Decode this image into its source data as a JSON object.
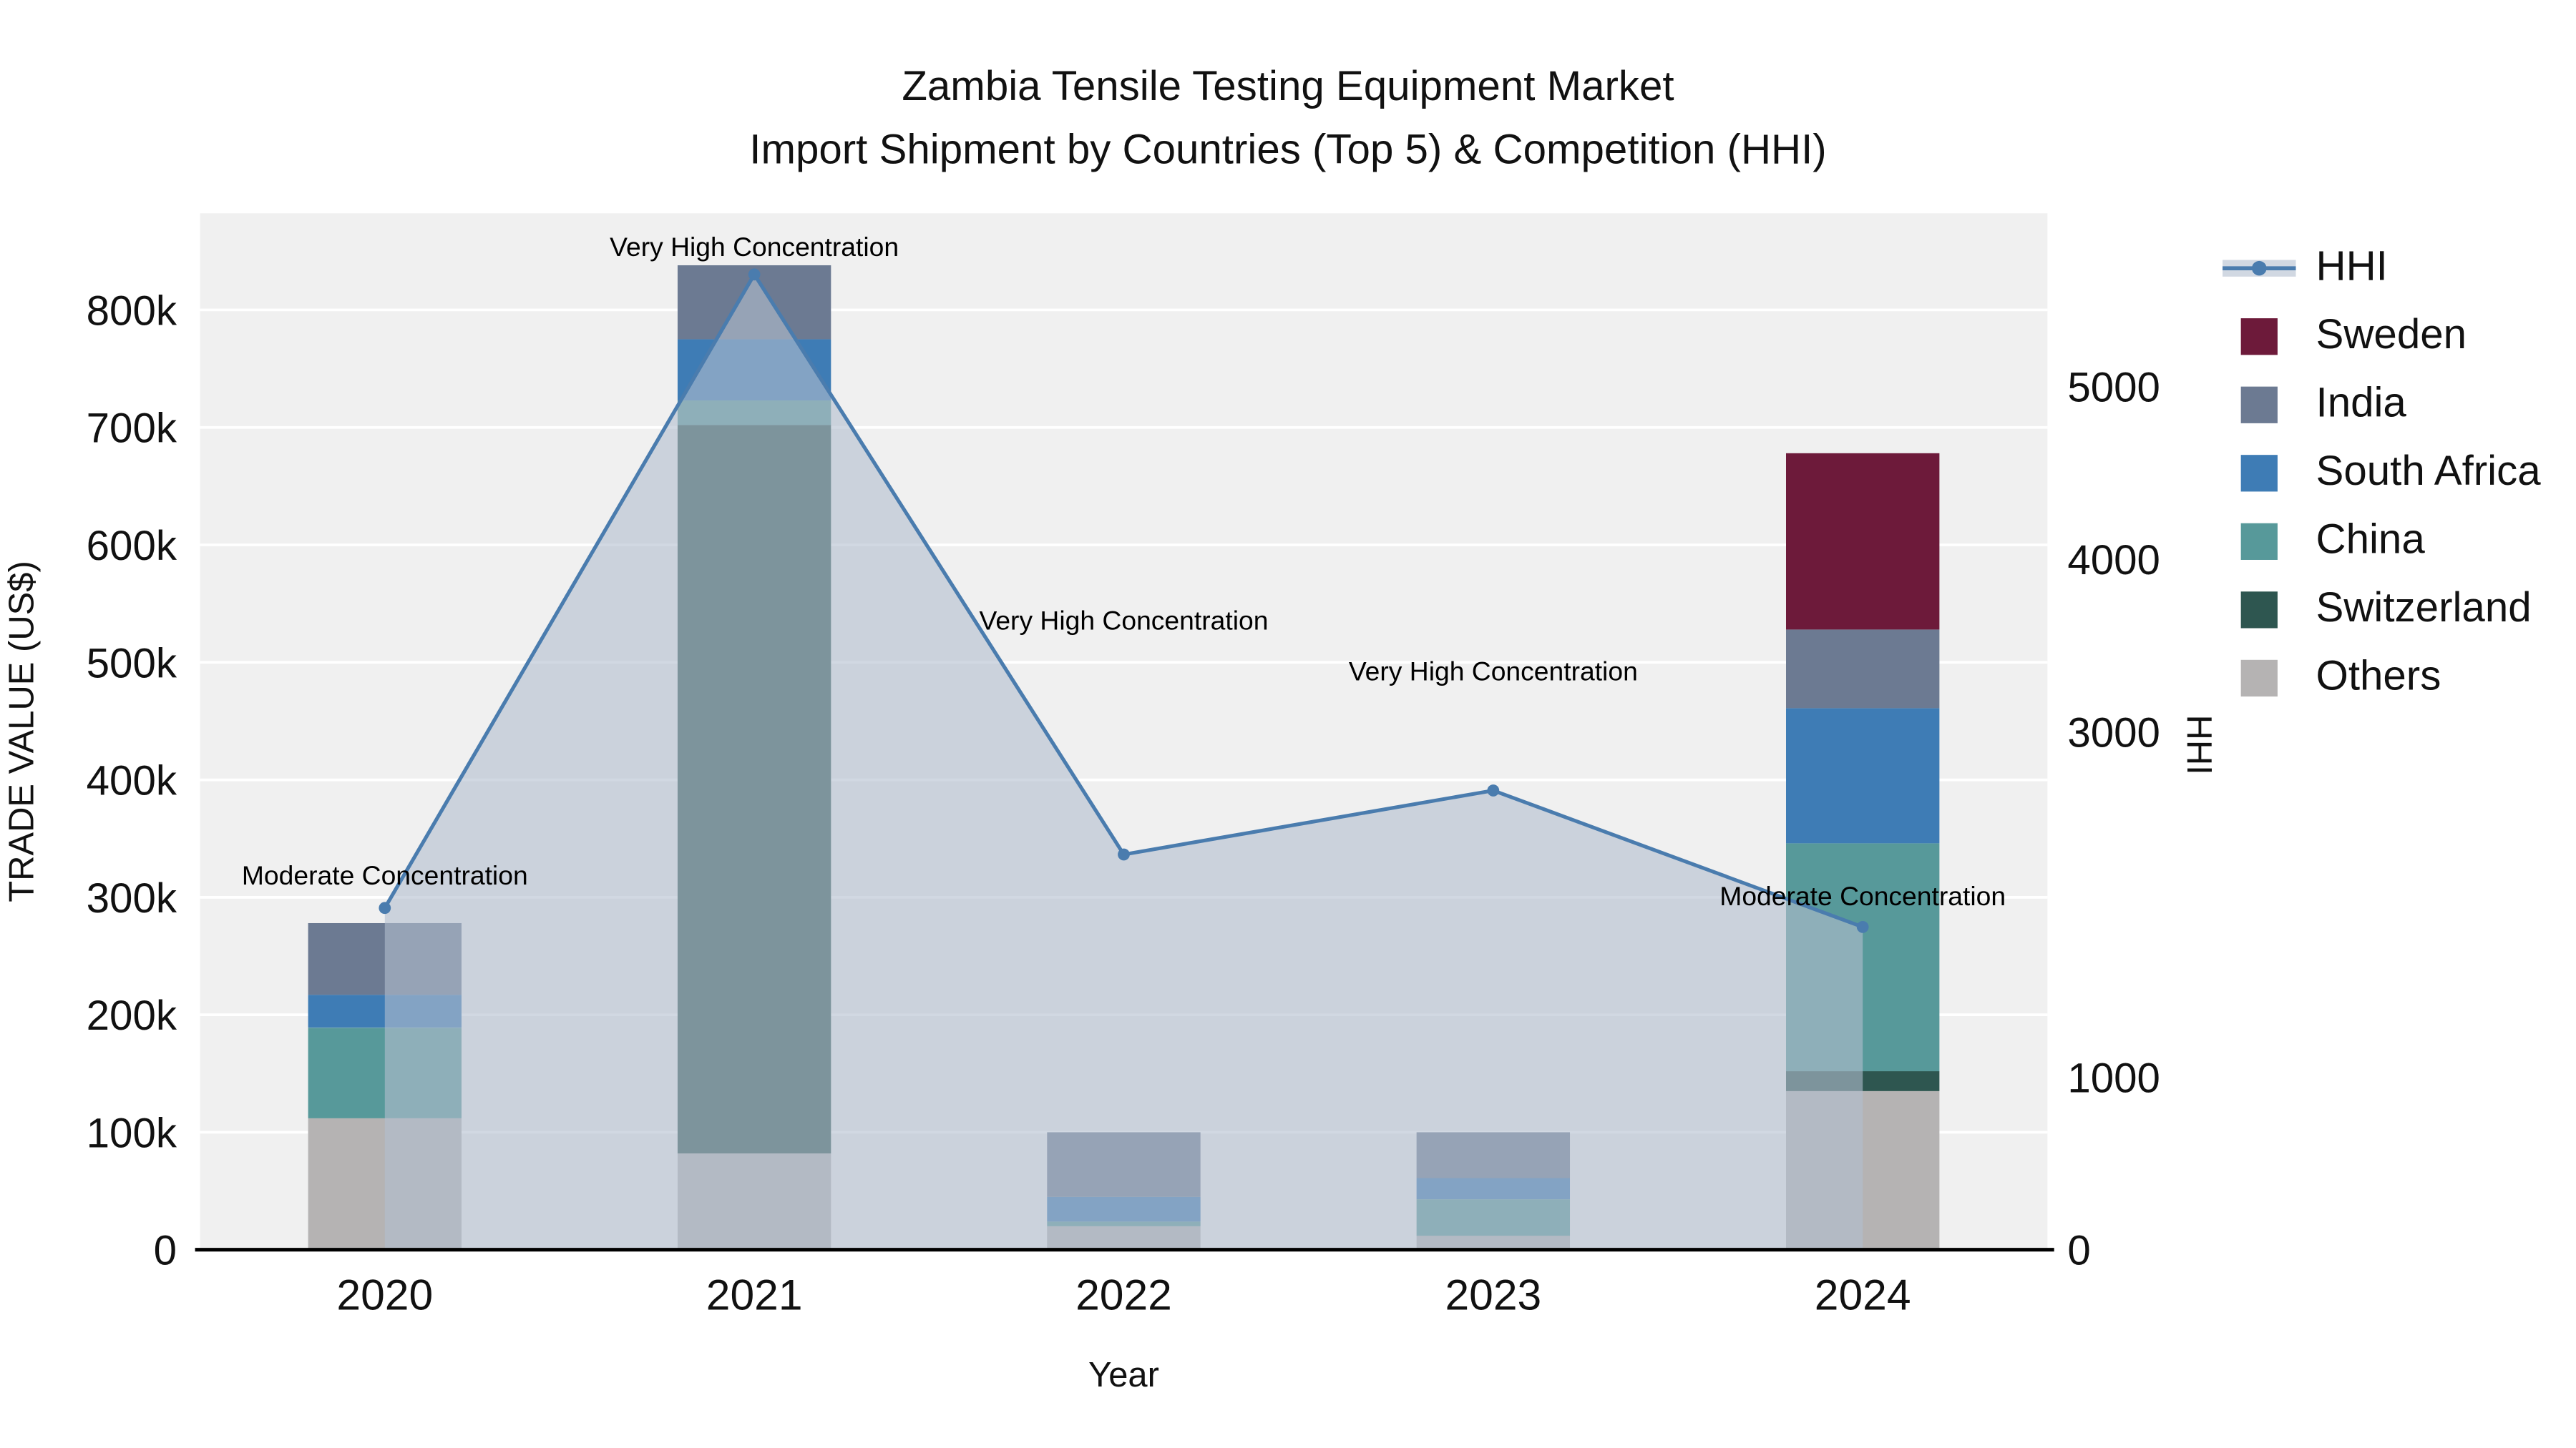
{
  "chart_data": {
    "type": "composed",
    "subtypes": [
      "stacked-bar",
      "line-area"
    ],
    "title_line1": "Zambia Tensile Testing Equipment Market",
    "title_line2": "Import Shipment by Countries (Top 5) & Competition (HHI)",
    "xlabel": "Year",
    "ylabel": "TRADE VALUE (US$)",
    "y2label": "HHI",
    "categories": [
      "2020",
      "2021",
      "2022",
      "2023",
      "2024"
    ],
    "bar_value_unit": "US$",
    "stack_order": [
      "Others",
      "Switzerland",
      "China",
      "South Africa",
      "India",
      "Sweden"
    ],
    "series": [
      {
        "name": "Sweden",
        "color": "#6d1a3a",
        "values": [
          0,
          0,
          0,
          0,
          150000
        ]
      },
      {
        "name": "India",
        "color": "#6c7a92",
        "values": [
          61000,
          63000,
          55000,
          39000,
          67000
        ]
      },
      {
        "name": "South Africa",
        "color": "#3e7cb5",
        "values": [
          28000,
          52000,
          21000,
          18000,
          115000
        ]
      },
      {
        "name": "China",
        "color": "#57999a",
        "values": [
          77000,
          21000,
          4000,
          31000,
          194000
        ]
      },
      {
        "name": "Switzerland",
        "color": "#2e5650",
        "values": [
          0,
          620000,
          0,
          0,
          17000
        ]
      },
      {
        "name": "Others",
        "color": "#b5b3b3",
        "values": [
          112000,
          82000,
          20000,
          12000,
          135000
        ]
      }
    ],
    "hhi_series": {
      "name": "HHI",
      "line_color": "#4a7cae",
      "area_color": "rgba(178,190,206,0.6)",
      "values": [
        1980,
        5650,
        2290,
        2660,
        1870
      ]
    },
    "annotations": [
      {
        "year": "2020",
        "text": "Moderate Concentration"
      },
      {
        "year": "2021",
        "text": "Very High Concentration"
      },
      {
        "year": "2022",
        "text": "Very High Concentration"
      },
      {
        "year": "2023",
        "text": "Very High Concentration"
      },
      {
        "year": "2024",
        "text": "Moderate Concentration"
      }
    ],
    "y_ticks": [
      {
        "v": 0,
        "label": "0"
      },
      {
        "v": 100000,
        "label": "100k"
      },
      {
        "v": 200000,
        "label": "200k"
      },
      {
        "v": 300000,
        "label": "300k"
      },
      {
        "v": 400000,
        "label": "400k"
      },
      {
        "v": 500000,
        "label": "500k"
      },
      {
        "v": 600000,
        "label": "600k"
      },
      {
        "v": 700000,
        "label": "700k"
      },
      {
        "v": 800000,
        "label": "800k"
      }
    ],
    "y2_ticks": [
      {
        "v": 0,
        "label": "0"
      },
      {
        "v": 1000,
        "label": "1000"
      },
      {
        "v": 3000,
        "label": "3000"
      },
      {
        "v": 4000,
        "label": "4000"
      },
      {
        "v": 5000,
        "label": "5000"
      }
    ],
    "ylim": [
      0,
      882000
    ],
    "y2lim": [
      0,
      6000
    ],
    "legend": [
      "HHI",
      "Sweden",
      "India",
      "South Africa",
      "China",
      "Switzerland",
      "Others"
    ],
    "legend_position": "right",
    "grid": "horizontal",
    "plot_bg": "#f0f0f0"
  }
}
